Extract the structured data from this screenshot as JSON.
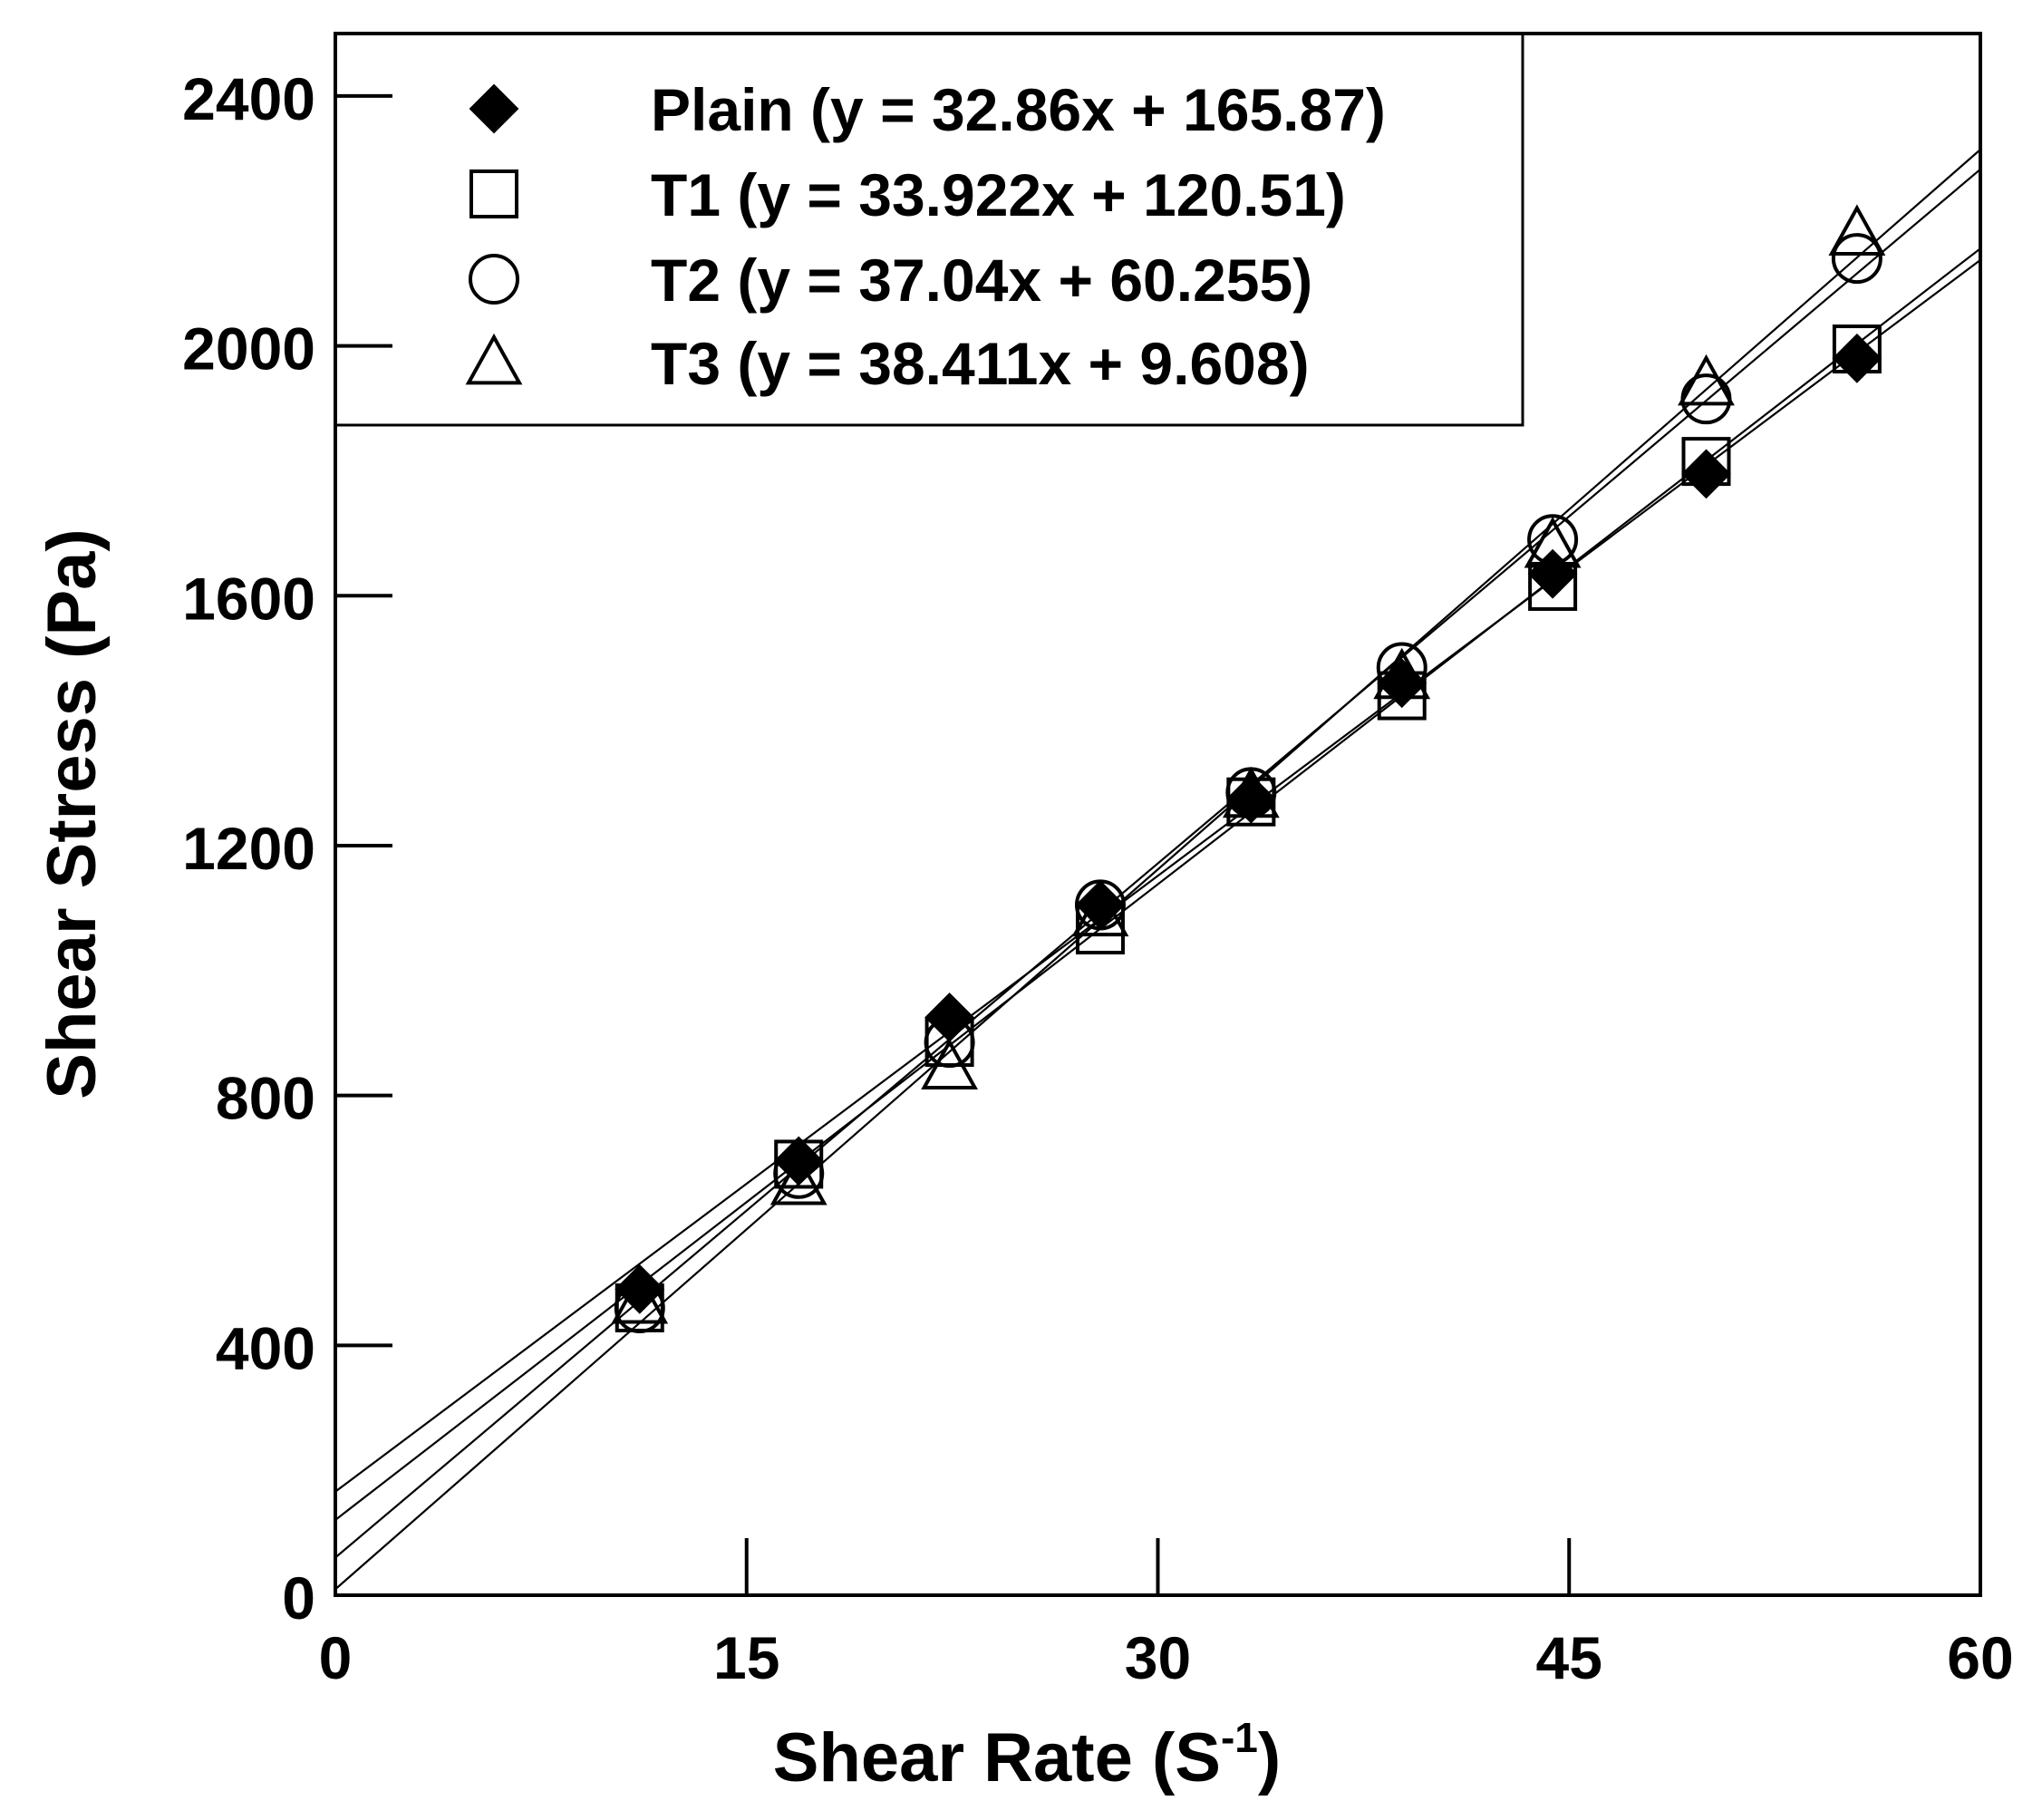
{
  "chart_data": {
    "type": "scatter",
    "title": "",
    "xlabel": "Shear Rate (S",
    "xlabel_sup": "-1",
    "xlabel_suffix": ")",
    "ylabel": "Shear Stress (Pa)",
    "xlim": [
      0,
      60
    ],
    "ylim": [
      0,
      2500
    ],
    "xticks": [
      0,
      15,
      30,
      45,
      60
    ],
    "xtick_labels": [
      "0",
      "15",
      "30",
      "45",
      "60"
    ],
    "yticks": [
      0,
      400,
      800,
      1200,
      1600,
      2000,
      2400
    ],
    "ytick_labels": [
      "0",
      "400",
      "800",
      "1200",
      "1600",
      "2000",
      "2400"
    ],
    "grid": false,
    "legend_position": "top-left",
    "x": [
      11.1,
      16.9,
      22.4,
      27.9,
      33.4,
      38.9,
      44.4,
      50.0,
      55.5
    ],
    "series": [
      {
        "name": "Plain (y = 32.86x + 165.87)",
        "marker": "diamond-filled",
        "fit": {
          "slope": 32.86,
          "intercept": 165.87
        },
        "values": [
          490,
          695,
          925,
          1105,
          1275,
          1460,
          1635,
          1795,
          1980
        ]
      },
      {
        "name": "T1 (y = 33.922x + 120.51)",
        "marker": "square-open",
        "fit": {
          "slope": 33.922,
          "intercept": 120.51
        },
        "values": [
          460,
          690,
          885,
          1065,
          1270,
          1440,
          1615,
          1815,
          1995
        ]
      },
      {
        "name": "T2 (y = 37.04x + 60.255)",
        "marker": "circle-open",
        "fit": {
          "slope": 37.04,
          "intercept": 60.255
        },
        "values": [
          460,
          675,
          885,
          1105,
          1285,
          1485,
          1690,
          1915,
          2140
        ]
      },
      {
        "name": "T3 (y = 38.411x + 9.608)",
        "marker": "triangle-open",
        "fit": {
          "slope": 38.411,
          "intercept": 9.608
        },
        "values": [
          470,
          660,
          845,
          1090,
          1280,
          1470,
          1680,
          1940,
          2180
        ]
      }
    ]
  }
}
